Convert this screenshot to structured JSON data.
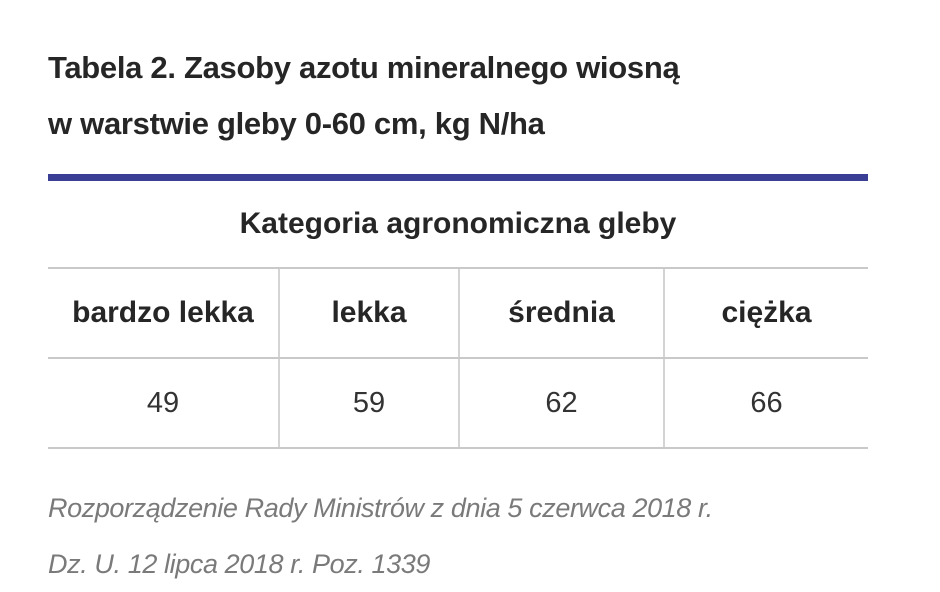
{
  "title": {
    "line1": "Tabela 2. Zasoby azotu mineralnego wiosną",
    "line2": "w warstwie gleby 0-60 cm, kg N/ha"
  },
  "colors": {
    "accent_rule": "#3a3f95",
    "grid_lines": "#c9c9c9",
    "source_text": "#7a7a7a"
  },
  "table": {
    "group_header": "Kategoria agronomiczna gleby",
    "columns": [
      "bardzo lekka",
      "lekka",
      "średnia",
      "ciężka"
    ],
    "values": [
      "49",
      "59",
      "62",
      "66"
    ]
  },
  "source": {
    "line1": "Rozporządzenie Rady Ministrów z dnia 5 czerwca 2018 r.",
    "line2": "Dz. U. 12 lipca 2018 r. Poz. 1339"
  }
}
